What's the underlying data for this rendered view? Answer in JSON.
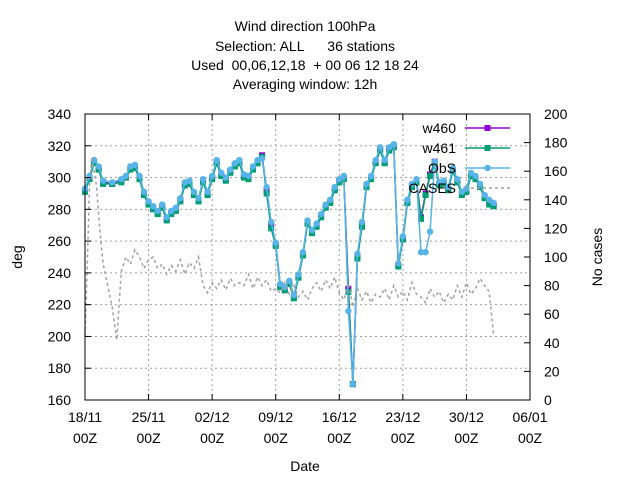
{
  "chart_data": {
    "type": "line",
    "title_lines": [
      "Wind direction 100hPa",
      "Selection: ALL      36 stations",
      "Used  00,06,12,18  + 00 06 12 18 24",
      "Averaging window: 12h"
    ],
    "xlabel": "Date",
    "ylabel": "deg",
    "y2label": "No cases",
    "xlim": [
      "2023-11-18T00:00",
      "2024-01-06T00:00"
    ],
    "ylim": [
      160,
      340
    ],
    "y2lim": [
      0,
      200
    ],
    "xticks": [
      {
        "date": "2023-11-18T00:00",
        "label_top": "18/11",
        "label_bottom": "00Z"
      },
      {
        "date": "2023-11-25T00:00",
        "label_top": "25/11",
        "label_bottom": "00Z"
      },
      {
        "date": "2023-12-02T00:00",
        "label_top": "02/12",
        "label_bottom": "00Z"
      },
      {
        "date": "2023-12-09T00:00",
        "label_top": "09/12",
        "label_bottom": "00Z"
      },
      {
        "date": "2023-12-16T00:00",
        "label_top": "16/12",
        "label_bottom": "00Z"
      },
      {
        "date": "2023-12-23T00:00",
        "label_top": "23/12",
        "label_bottom": "00Z"
      },
      {
        "date": "2023-12-30T00:00",
        "label_top": "30/12",
        "label_bottom": "00Z"
      },
      {
        "date": "2024-01-06T00:00",
        "label_top": "06/01",
        "label_bottom": "00Z"
      }
    ],
    "yticks": [
      160,
      180,
      200,
      220,
      240,
      260,
      280,
      300,
      320,
      340
    ],
    "y2ticks": [
      0,
      20,
      40,
      60,
      80,
      100,
      120,
      140,
      160,
      180,
      200
    ],
    "grid": true,
    "legend_position": "top-right",
    "series": [
      {
        "name": "w460",
        "color": "#9400d3",
        "axis": "left",
        "style": "line-markers",
        "x": [
          "2023-11-18T00:00",
          "2023-11-18T12:00",
          "2023-11-19T00:00",
          "2023-11-19T12:00",
          "2023-11-20T00:00",
          "2023-11-21T00:00",
          "2023-11-22T00:00",
          "2023-11-22T12:00",
          "2023-11-23T00:00",
          "2023-11-23T12:00",
          "2023-11-24T00:00",
          "2023-11-24T12:00",
          "2023-11-25T00:00",
          "2023-11-25T12:00",
          "2023-11-26T00:00",
          "2023-11-26T12:00",
          "2023-11-27T00:00",
          "2023-11-27T12:00",
          "2023-11-28T00:00",
          "2023-11-28T12:00",
          "2023-11-29T00:00",
          "2023-11-29T12:00",
          "2023-11-30T00:00",
          "2023-11-30T12:00",
          "2023-12-01T00:00",
          "2023-12-01T12:00",
          "2023-12-02T00:00",
          "2023-12-02T12:00",
          "2023-12-03T00:00",
          "2023-12-03T12:00",
          "2023-12-04T00:00",
          "2023-12-04T12:00",
          "2023-12-05T00:00",
          "2023-12-05T12:00",
          "2023-12-06T00:00",
          "2023-12-06T12:00",
          "2023-12-07T00:00",
          "2023-12-07T12:00",
          "2023-12-08T00:00",
          "2023-12-08T12:00",
          "2023-12-09T00:00",
          "2023-12-09T12:00",
          "2023-12-10T00:00",
          "2023-12-10T12:00",
          "2023-12-11T00:00",
          "2023-12-11T12:00",
          "2023-12-12T00:00",
          "2023-12-12T12:00",
          "2023-12-13T00:00",
          "2023-12-13T12:00",
          "2023-12-14T00:00",
          "2023-12-14T12:00",
          "2023-12-15T00:00",
          "2023-12-15T12:00",
          "2023-12-16T00:00",
          "2023-12-16T12:00",
          "2023-12-17T00:00",
          "2023-12-17T12:00",
          "2023-12-18T00:00",
          "2023-12-18T12:00",
          "2023-12-19T00:00",
          "2023-12-19T12:00",
          "2023-12-20T00:00",
          "2023-12-20T12:00",
          "2023-12-21T00:00",
          "2023-12-21T12:00",
          "2023-12-22T00:00",
          "2023-12-22T12:00",
          "2023-12-23T00:00",
          "2023-12-23T12:00",
          "2023-12-24T00:00",
          "2023-12-24T12:00",
          "2023-12-25T00:00",
          "2023-12-25T12:00",
          "2023-12-26T00:00",
          "2023-12-26T12:00",
          "2023-12-27T00:00",
          "2023-12-27T12:00",
          "2023-12-28T00:00",
          "2023-12-28T12:00",
          "2023-12-29T00:00",
          "2023-12-29T12:00",
          "2023-12-30T00:00",
          "2023-12-30T12:00",
          "2023-12-31T00:00",
          "2023-12-31T12:00",
          "2024-01-01T00:00",
          "2024-01-01T12:00",
          "2024-01-02T00:00"
        ],
        "values": [
          292,
          300,
          310,
          306,
          297,
          296,
          298,
          300,
          306,
          307,
          300,
          290,
          284,
          281,
          278,
          282,
          274,
          278,
          280,
          286,
          296,
          297,
          290,
          286,
          298,
          290,
          300,
          310,
          302,
          299,
          304,
          308,
          310,
          301,
          300,
          306,
          310,
          314,
          292,
          270,
          258,
          232,
          230,
          234,
          225,
          238,
          252,
          272,
          266,
          270,
          276,
          282,
          285,
          293,
          298,
          300,
          230,
          170,
          250,
          270,
          295,
          300,
          310,
          318,
          310,
          318,
          320,
          245,
          262,
          285,
          295,
          298,
          275,
          290,
          302,
          310,
          296,
          297,
          293,
          305,
          298,
          290,
          292,
          302,
          300,
          295,
          288,
          285,
          283
        ]
      },
      {
        "name": "w461",
        "color": "#009e73",
        "axis": "left",
        "style": "line-markers",
        "x": [
          "2023-11-18T00:00",
          "2023-11-18T12:00",
          "2023-11-19T00:00",
          "2023-11-19T12:00",
          "2023-11-20T00:00",
          "2023-11-21T00:00",
          "2023-11-22T00:00",
          "2023-11-22T12:00",
          "2023-11-23T00:00",
          "2023-11-23T12:00",
          "2023-11-24T00:00",
          "2023-11-24T12:00",
          "2023-11-25T00:00",
          "2023-11-25T12:00",
          "2023-11-26T00:00",
          "2023-11-26T12:00",
          "2023-11-27T00:00",
          "2023-11-27T12:00",
          "2023-11-28T00:00",
          "2023-11-28T12:00",
          "2023-11-29T00:00",
          "2023-11-29T12:00",
          "2023-11-30T00:00",
          "2023-11-30T12:00",
          "2023-12-01T00:00",
          "2023-12-01T12:00",
          "2023-12-02T00:00",
          "2023-12-02T12:00",
          "2023-12-03T00:00",
          "2023-12-03T12:00",
          "2023-12-04T00:00",
          "2023-12-04T12:00",
          "2023-12-05T00:00",
          "2023-12-05T12:00",
          "2023-12-06T00:00",
          "2023-12-06T12:00",
          "2023-12-07T00:00",
          "2023-12-07T12:00",
          "2023-12-08T00:00",
          "2023-12-08T12:00",
          "2023-12-09T00:00",
          "2023-12-09T12:00",
          "2023-12-10T00:00",
          "2023-12-10T12:00",
          "2023-12-11T00:00",
          "2023-12-11T12:00",
          "2023-12-12T00:00",
          "2023-12-12T12:00",
          "2023-12-13T00:00",
          "2023-12-13T12:00",
          "2023-12-14T00:00",
          "2023-12-14T12:00",
          "2023-12-15T00:00",
          "2023-12-15T12:00",
          "2023-12-16T00:00",
          "2023-12-16T12:00",
          "2023-12-17T00:00",
          "2023-12-17T12:00",
          "2023-12-18T00:00",
          "2023-12-18T12:00",
          "2023-12-19T00:00",
          "2023-12-19T12:00",
          "2023-12-20T00:00",
          "2023-12-20T12:00",
          "2023-12-21T00:00",
          "2023-12-21T12:00",
          "2023-12-22T00:00",
          "2023-12-22T12:00",
          "2023-12-23T00:00",
          "2023-12-23T12:00",
          "2023-12-24T00:00",
          "2023-12-24T12:00",
          "2023-12-25T00:00",
          "2023-12-25T12:00",
          "2023-12-26T00:00",
          "2023-12-26T12:00",
          "2023-12-27T00:00",
          "2023-12-27T12:00",
          "2023-12-28T00:00",
          "2023-12-28T12:00",
          "2023-12-29T00:00",
          "2023-12-29T12:00",
          "2023-12-30T00:00",
          "2023-12-30T12:00",
          "2023-12-31T00:00",
          "2023-12-31T12:00",
          "2024-01-01T00:00",
          "2024-01-01T12:00",
          "2024-01-02T00:00"
        ],
        "values": [
          291,
          299,
          309,
          305,
          296,
          296,
          297,
          300,
          305,
          306,
          299,
          289,
          283,
          280,
          277,
          281,
          273,
          277,
          279,
          285,
          295,
          296,
          289,
          285,
          297,
          289,
          299,
          309,
          301,
          298,
          303,
          307,
          309,
          300,
          299,
          305,
          309,
          313,
          290,
          268,
          257,
          231,
          229,
          233,
          224,
          237,
          251,
          271,
          265,
          269,
          275,
          281,
          284,
          292,
          297,
          299,
          228,
          170,
          249,
          269,
          294,
          299,
          309,
          317,
          309,
          317,
          319,
          244,
          261,
          284,
          294,
          297,
          274,
          289,
          301,
          309,
          295,
          296,
          292,
          304,
          297,
          289,
          291,
          301,
          299,
          294,
          287,
          283,
          282
        ]
      },
      {
        "name": "ObS",
        "color": "#56b4e9",
        "axis": "left",
        "style": "line-markers",
        "x": [
          "2023-11-18T00:00",
          "2023-11-18T12:00",
          "2023-11-19T00:00",
          "2023-11-19T12:00",
          "2023-11-20T00:00",
          "2023-11-21T00:00",
          "2023-11-22T00:00",
          "2023-11-22T12:00",
          "2023-11-23T00:00",
          "2023-11-23T12:00",
          "2023-11-24T00:00",
          "2023-11-24T12:00",
          "2023-11-25T00:00",
          "2023-11-25T12:00",
          "2023-11-26T00:00",
          "2023-11-26T12:00",
          "2023-11-27T00:00",
          "2023-11-27T12:00",
          "2023-11-28T00:00",
          "2023-11-28T12:00",
          "2023-11-29T00:00",
          "2023-11-29T12:00",
          "2023-11-30T00:00",
          "2023-11-30T12:00",
          "2023-12-01T00:00",
          "2023-12-01T12:00",
          "2023-12-02T00:00",
          "2023-12-02T12:00",
          "2023-12-03T00:00",
          "2023-12-03T12:00",
          "2023-12-04T00:00",
          "2023-12-04T12:00",
          "2023-12-05T00:00",
          "2023-12-05T12:00",
          "2023-12-06T00:00",
          "2023-12-06T12:00",
          "2023-12-07T00:00",
          "2023-12-07T12:00",
          "2023-12-08T00:00",
          "2023-12-08T12:00",
          "2023-12-09T00:00",
          "2023-12-09T12:00",
          "2023-12-10T00:00",
          "2023-12-10T12:00",
          "2023-12-11T00:00",
          "2023-12-11T12:00",
          "2023-12-12T00:00",
          "2023-12-12T12:00",
          "2023-12-13T00:00",
          "2023-12-13T12:00",
          "2023-12-14T00:00",
          "2023-12-14T12:00",
          "2023-12-15T00:00",
          "2023-12-15T12:00",
          "2023-12-16T00:00",
          "2023-12-16T12:00",
          "2023-12-17T00:00",
          "2023-12-17T12:00",
          "2023-12-18T00:00",
          "2023-12-18T12:00",
          "2023-12-19T00:00",
          "2023-12-19T12:00",
          "2023-12-20T00:00",
          "2023-12-20T12:00",
          "2023-12-21T00:00",
          "2023-12-21T12:00",
          "2023-12-22T00:00",
          "2023-12-22T12:00",
          "2023-12-23T00:00",
          "2023-12-23T12:00",
          "2023-12-24T00:00",
          "2023-12-24T12:00",
          "2023-12-25T00:00",
          "2023-12-25T12:00",
          "2023-12-26T00:00",
          "2023-12-26T12:00",
          "2023-12-27T00:00",
          "2023-12-27T12:00",
          "2023-12-28T00:00",
          "2023-12-28T12:00",
          "2023-12-29T00:00",
          "2023-12-29T12:00",
          "2023-12-30T00:00",
          "2023-12-30T12:00",
          "2023-12-31T00:00",
          "2023-12-31T12:00",
          "2024-01-01T00:00",
          "2024-01-01T12:00",
          "2024-01-02T00:00"
        ],
        "values": [
          293,
          301,
          311,
          307,
          298,
          297,
          299,
          301,
          307,
          308,
          301,
          291,
          285,
          282,
          279,
          283,
          275,
          279,
          281,
          287,
          297,
          298,
          291,
          287,
          299,
          291,
          301,
          311,
          303,
          300,
          305,
          309,
          311,
          302,
          301,
          307,
          311,
          312,
          294,
          272,
          259,
          233,
          231,
          235,
          226,
          239,
          253,
          273,
          267,
          271,
          277,
          283,
          286,
          294,
          299,
          301,
          216,
          170,
          252,
          272,
          296,
          301,
          311,
          319,
          311,
          319,
          321,
          246,
          263,
          286,
          296,
          299,
          253,
          253,
          266,
          310,
          297,
          298,
          294,
          306,
          299,
          291,
          293,
          303,
          301,
          296,
          289,
          286,
          284
        ]
      },
      {
        "name": "CASES",
        "color": "#a0a0a0",
        "axis": "right",
        "style": "dashed",
        "x": [
          "2023-11-18T00:00",
          "2023-11-18T06:00",
          "2023-11-18T12:00",
          "2023-11-18T18:00",
          "2023-11-19T00:00",
          "2023-11-19T06:00",
          "2023-11-19T12:00",
          "2023-11-19T18:00",
          "2023-11-20T00:00",
          "2023-11-20T12:00",
          "2023-11-21T00:00",
          "2023-11-21T12:00",
          "2023-11-22T00:00",
          "2023-11-22T12:00",
          "2023-11-23T00:00",
          "2023-11-23T12:00",
          "2023-11-24T00:00",
          "2023-11-24T12:00",
          "2023-11-25T00:00",
          "2023-11-25T12:00",
          "2023-11-26T00:00",
          "2023-11-26T12:00",
          "2023-11-27T00:00",
          "2023-11-27T12:00",
          "2023-11-28T00:00",
          "2023-11-28T12:00",
          "2023-11-29T00:00",
          "2023-11-29T12:00",
          "2023-11-30T00:00",
          "2023-11-30T12:00",
          "2023-12-01T00:00",
          "2023-12-01T12:00",
          "2023-12-02T00:00",
          "2023-12-02T12:00",
          "2023-12-03T00:00",
          "2023-12-03T12:00",
          "2023-12-04T00:00",
          "2023-12-04T12:00",
          "2023-12-05T00:00",
          "2023-12-05T12:00",
          "2023-12-06T00:00",
          "2023-12-06T12:00",
          "2023-12-07T00:00",
          "2023-12-07T12:00",
          "2023-12-08T00:00",
          "2023-12-08T12:00",
          "2023-12-09T00:00",
          "2023-12-09T12:00",
          "2023-12-10T00:00",
          "2023-12-10T12:00",
          "2023-12-11T00:00",
          "2023-12-11T12:00",
          "2023-12-12T00:00",
          "2023-12-12T12:00",
          "2023-12-13T00:00",
          "2023-12-13T12:00",
          "2023-12-14T00:00",
          "2023-12-14T12:00",
          "2023-12-15T00:00",
          "2023-12-15T12:00",
          "2023-12-16T00:00",
          "2023-12-16T12:00",
          "2023-12-17T00:00",
          "2023-12-17T12:00",
          "2023-12-18T00:00",
          "2023-12-18T12:00",
          "2023-12-19T00:00",
          "2023-12-19T12:00",
          "2023-12-20T00:00",
          "2023-12-20T12:00",
          "2023-12-21T00:00",
          "2023-12-21T12:00",
          "2023-12-22T00:00",
          "2023-12-22T12:00",
          "2023-12-23T00:00",
          "2023-12-23T12:00",
          "2023-12-24T00:00",
          "2023-12-24T12:00",
          "2023-12-25T00:00",
          "2023-12-25T12:00",
          "2023-12-26T00:00",
          "2023-12-26T12:00",
          "2023-12-27T00:00",
          "2023-12-27T12:00",
          "2023-12-28T00:00",
          "2023-12-28T12:00",
          "2023-12-29T00:00",
          "2023-12-29T12:00",
          "2023-12-30T00:00",
          "2023-12-30T12:00",
          "2023-12-31T00:00",
          "2023-12-31T12:00",
          "2024-01-01T00:00",
          "2024-01-01T12:00",
          "2024-01-02T00:00"
        ],
        "values": [
          45,
          95,
          150,
          170,
          160,
          150,
          130,
          110,
          95,
          80,
          65,
          42,
          90,
          100,
          95,
          105,
          100,
          92,
          98,
          100,
          92,
          95,
          88,
          94,
          90,
          98,
          88,
          96,
          92,
          100,
          80,
          75,
          82,
          78,
          84,
          77,
          85,
          80,
          82,
          80,
          88,
          78,
          86,
          80,
          84,
          76,
          78,
          75,
          82,
          74,
          80,
          72,
          76,
          70,
          78,
          82,
          76,
          84,
          78,
          86,
          75,
          70,
          82,
          65,
          78,
          70,
          76,
          68,
          74,
          72,
          78,
          70,
          80,
          72,
          76,
          70,
          82,
          74,
          72,
          68,
          78,
          72,
          76,
          68,
          74,
          70,
          80,
          72,
          82,
          74,
          78,
          85,
          80,
          76,
          45
        ]
      }
    ]
  }
}
